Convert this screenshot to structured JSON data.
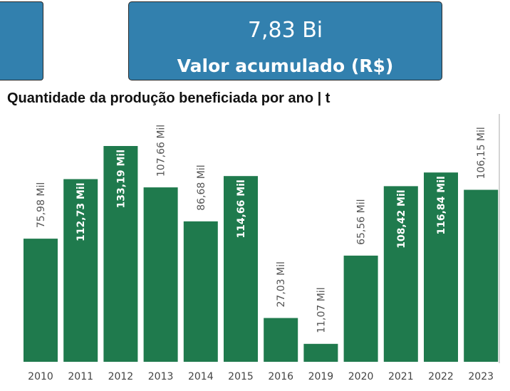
{
  "kpi": {
    "value": "7,83 Bi",
    "label": "Valor acumulado (R$)"
  },
  "chart_title": "Quantidade da produção beneficiada por ano | t",
  "colors": {
    "card_bg": "#3280ae",
    "bar": "#1f7a4d",
    "label_outside": "#555555",
    "label_inside": "#ffffff",
    "axis_text": "#444444"
  },
  "chart_data": {
    "type": "bar",
    "title": "Quantidade da produção beneficiada por ano | t",
    "xlabel": "",
    "ylabel": "",
    "categories": [
      "2010",
      "2011",
      "2012",
      "2013",
      "2014",
      "2015",
      "2016",
      "2019",
      "2020",
      "2021",
      "2022",
      "2023"
    ],
    "values": [
      75.98,
      112.73,
      133.19,
      107.66,
      86.68,
      114.66,
      27.03,
      11.07,
      65.56,
      108.42,
      116.84,
      106.15
    ],
    "value_labels": [
      "75,98 Mil",
      "112,73 Mil",
      "133,19 Mil",
      "107,66 Mil",
      "86,68 Mil",
      "114,66 Mil",
      "27,03 Mil",
      "11,07 Mil",
      "65,56 Mil",
      "108,42 Mil",
      "116,84 Mil",
      "106,15 Mil"
    ],
    "label_inside": [
      false,
      true,
      true,
      false,
      false,
      true,
      false,
      false,
      false,
      true,
      true,
      false
    ],
    "unit": "Mil t",
    "ylim": [
      0,
      140
    ],
    "grid": false,
    "legend": "none"
  }
}
